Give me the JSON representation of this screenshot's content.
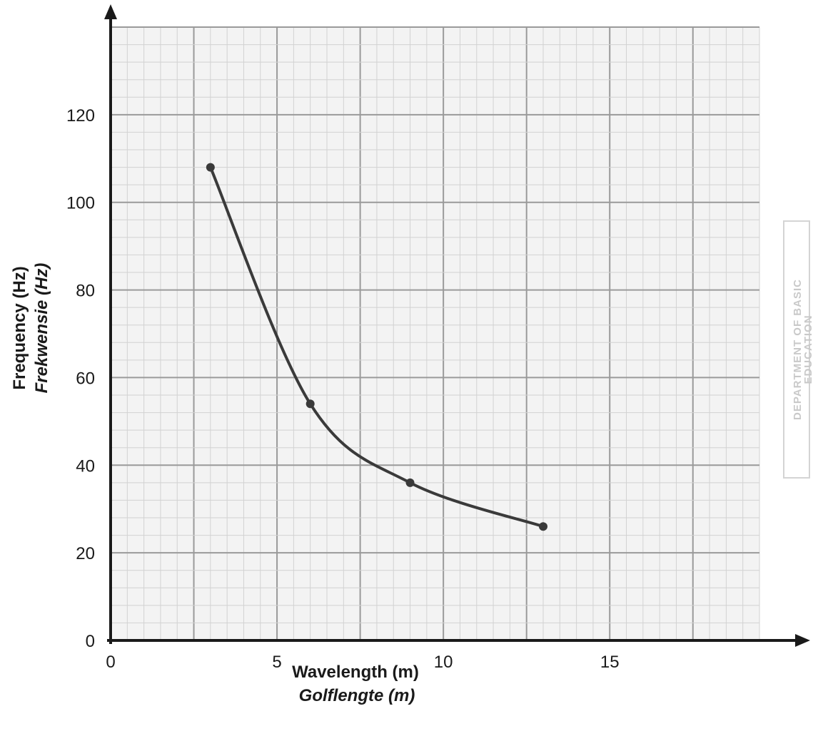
{
  "chart_data": {
    "type": "line",
    "x": [
      3,
      6,
      9,
      13
    ],
    "series": [
      {
        "values": [
          108,
          54,
          36,
          26
        ]
      }
    ],
    "xlabel": "Wavelength (m)",
    "xlabel_alt": "Golflengte (m)",
    "ylabel": "Frequency (Hz)",
    "ylabel_alt": "Frekwensie (Hz)",
    "xlim": [
      0,
      19.5
    ],
    "ylim": [
      0,
      140
    ],
    "xticks": [
      "0",
      "5",
      "10",
      "15"
    ],
    "xtick_values": [
      0,
      5,
      10,
      15
    ],
    "yticks": [
      "0",
      "20",
      "40",
      "60",
      "80",
      "100",
      "120"
    ],
    "ytick_values": [
      0,
      20,
      40,
      60,
      80,
      100,
      120
    ],
    "grid": true,
    "grid_major_x": 2.5,
    "grid_major_y": 20,
    "grid_minor_x": 0.5,
    "grid_minor_y": 4,
    "colors": {
      "line": "#3a3a3a",
      "grid_minor": "#d2d2d2",
      "grid_major": "#9a9a9a",
      "axis": "#1a1a1a",
      "paper": "#f3f3f3"
    }
  },
  "stamp": {
    "line1": "DEPARTMENT OF BASIC",
    "line2": "EDUCATION"
  }
}
